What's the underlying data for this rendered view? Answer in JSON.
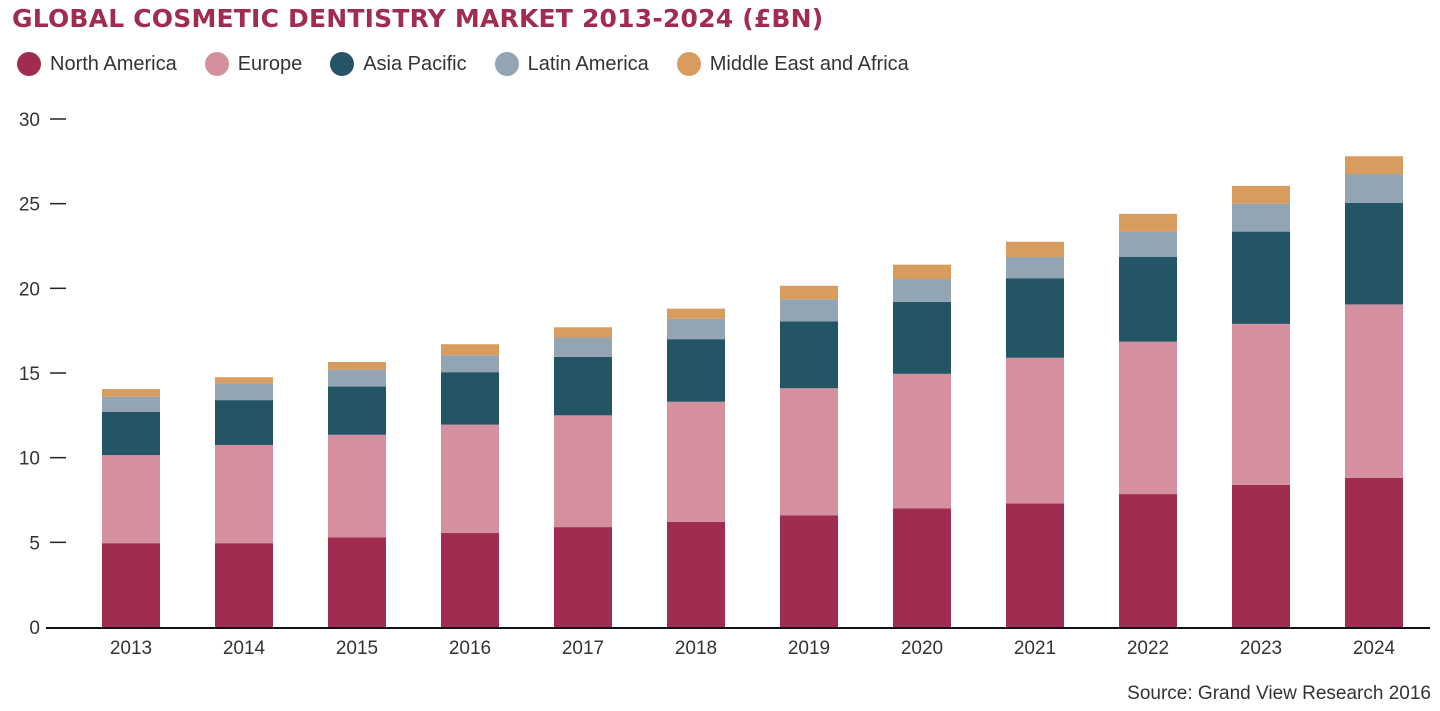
{
  "chart_data": {
    "type": "bar",
    "stacked": true,
    "title": "GLOBAL COSMETIC DENTISTRY MARKET 2013-2024 (£BN)",
    "xlabel": "",
    "ylabel": "",
    "ylim": [
      0,
      30
    ],
    "yticks": [
      0,
      5,
      10,
      15,
      20,
      25,
      30
    ],
    "grid": false,
    "legend_position": "top-left",
    "categories": [
      "2013",
      "2014",
      "2015",
      "2016",
      "2017",
      "2018",
      "2019",
      "2020",
      "2021",
      "2022",
      "2023",
      "2024"
    ],
    "series": [
      {
        "name": "North America",
        "color": "#a02d50",
        "values": [
          4.95,
          4.95,
          5.3,
          5.55,
          5.9,
          6.2,
          6.6,
          7.0,
          7.3,
          7.85,
          8.4,
          8.8
        ]
      },
      {
        "name": "Europe",
        "color": "#d4909e",
        "values": [
          5.2,
          5.8,
          6.05,
          6.4,
          6.6,
          7.1,
          7.5,
          7.95,
          8.6,
          9.0,
          9.5,
          10.25
        ]
      },
      {
        "name": "Asia Pacific",
        "color": "#245566",
        "values": [
          2.55,
          2.65,
          2.85,
          3.1,
          3.45,
          3.7,
          3.95,
          4.25,
          4.7,
          5.0,
          5.45,
          6.0
        ]
      },
      {
        "name": "Latin America",
        "color": "#93a4b3",
        "values": [
          0.9,
          1.0,
          1.0,
          1.0,
          1.15,
          1.2,
          1.3,
          1.35,
          1.25,
          1.5,
          1.65,
          1.7
        ]
      },
      {
        "name": "Middle East and Africa",
        "color": "#d89c5e",
        "values": [
          0.45,
          0.35,
          0.45,
          0.65,
          0.6,
          0.6,
          0.8,
          0.85,
          0.9,
          1.05,
          1.05,
          1.05
        ]
      }
    ],
    "source": "Source: Grand View Research 2016"
  }
}
